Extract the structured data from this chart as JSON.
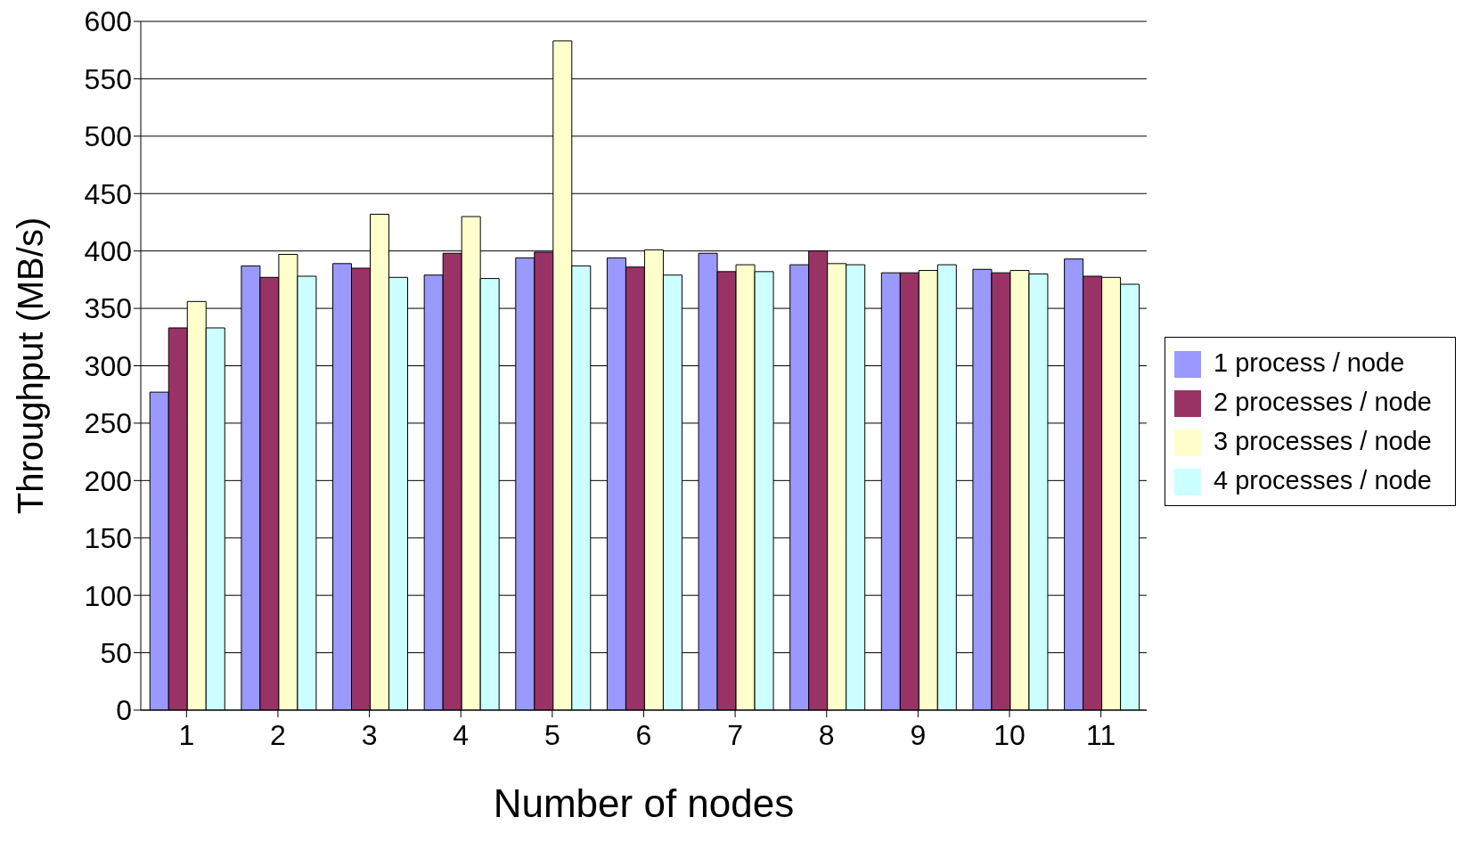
{
  "chart_data": {
    "type": "bar",
    "xlabel": "Number of nodes",
    "ylabel": "Throughput (MB/s)",
    "categories": [
      "1",
      "2",
      "3",
      "4",
      "5",
      "6",
      "7",
      "8",
      "9",
      "10",
      "11"
    ],
    "series": [
      {
        "name": "1 process / node",
        "color": "#9999ff",
        "values": [
          277,
          387,
          389,
          379,
          394,
          394,
          398,
          388,
          381,
          384,
          393
        ]
      },
      {
        "name": "2 processes / node",
        "color": "#993366",
        "values": [
          333,
          377,
          385,
          398,
          399,
          386,
          382,
          400,
          381,
          381,
          378
        ]
      },
      {
        "name": "3 processes / node",
        "color": "#ffffcc",
        "values": [
          356,
          397,
          432,
          430,
          583,
          401,
          388,
          389,
          383,
          383,
          377
        ]
      },
      {
        "name": "4 processes / node",
        "color": "#ccffff",
        "values": [
          333,
          378,
          377,
          376,
          387,
          379,
          382,
          388,
          388,
          380,
          371
        ]
      }
    ],
    "ylim": [
      0,
      600
    ],
    "yticks": [
      0,
      50,
      100,
      150,
      200,
      250,
      300,
      350,
      400,
      450,
      500,
      550,
      600
    ],
    "grid": "y",
    "legend": "right"
  }
}
